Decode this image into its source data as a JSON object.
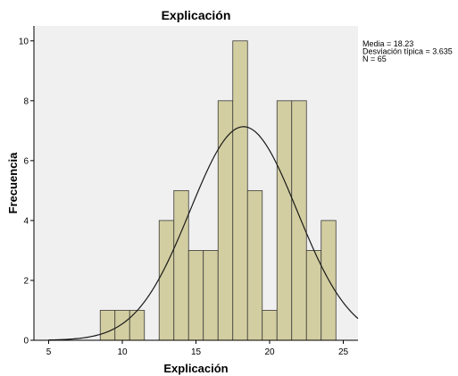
{
  "chart_data": {
    "type": "bar",
    "title": "Explicación",
    "xlabel": "Explicación",
    "ylabel": "Frecuencia",
    "xlim": [
      4,
      26
    ],
    "ylim": [
      0,
      10.5
    ],
    "x_ticks": [
      "5",
      "10",
      "15",
      "20",
      "25"
    ],
    "y_ticks": [
      "0",
      "2",
      "4",
      "6",
      "8",
      "10"
    ],
    "bin_width": 1,
    "bins": [
      {
        "start": 8.5,
        "count": 1
      },
      {
        "start": 9.5,
        "count": 1
      },
      {
        "start": 10.5,
        "count": 1
      },
      {
        "start": 12.5,
        "count": 4
      },
      {
        "start": 13.5,
        "count": 5
      },
      {
        "start": 14.5,
        "count": 3
      },
      {
        "start": 15.5,
        "count": 3
      },
      {
        "start": 16.5,
        "count": 8
      },
      {
        "start": 17.5,
        "count": 10
      },
      {
        "start": 18.5,
        "count": 5
      },
      {
        "start": 19.5,
        "count": 1
      },
      {
        "start": 20.5,
        "count": 8
      },
      {
        "start": 21.5,
        "count": 8
      },
      {
        "start": 22.5,
        "count": 3
      },
      {
        "start": 23.5,
        "count": 4
      }
    ],
    "normal_curve": {
      "mean": 18.23,
      "sd": 3.635,
      "n": 65
    },
    "stats_lines": [
      "Media = 18.23",
      "Desviación típica = 3.635",
      "N = 65"
    ],
    "grid": false,
    "colors": {
      "plot_bg": "#f0f0f0",
      "bar_fill": "#d3cea1",
      "bar_stroke": "#3a3a3a",
      "curve": "#1a1a1a"
    }
  }
}
